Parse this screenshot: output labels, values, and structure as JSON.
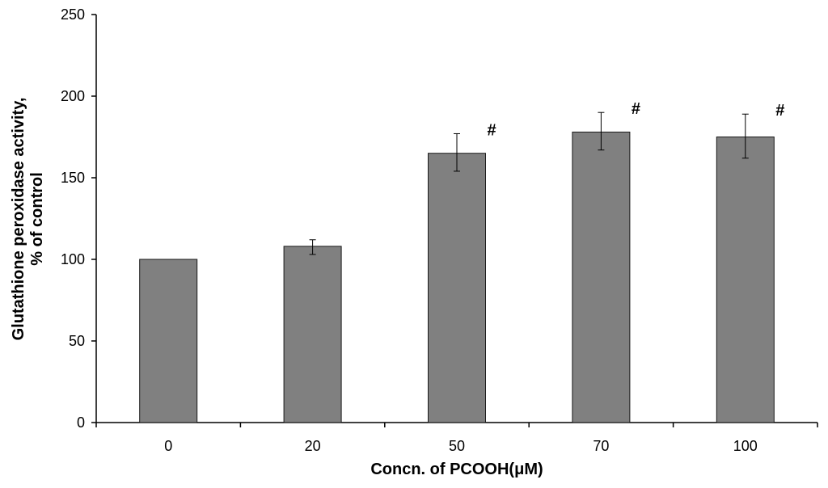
{
  "chart_data": {
    "type": "bar",
    "title": "",
    "xlabel": "Concn. of PCOOH(μM)",
    "ylabel_lines": [
      "Glutathione peroxidase activity,",
      "% of control"
    ],
    "categories": [
      "0",
      "20",
      "50",
      "70",
      "100"
    ],
    "values": [
      100,
      108,
      165,
      178,
      175
    ],
    "error_low": [
      100,
      103,
      154,
      167,
      162
    ],
    "error_high": [
      100,
      112,
      177,
      190,
      189
    ],
    "annotations": [
      "",
      "",
      "#",
      "#",
      "#"
    ],
    "ylim": [
      0,
      250
    ],
    "yticks": [
      0,
      50,
      100,
      150,
      200,
      250
    ],
    "grid": false,
    "bar_color": "#808080",
    "bar_edge_color": "#1a1a1a"
  }
}
